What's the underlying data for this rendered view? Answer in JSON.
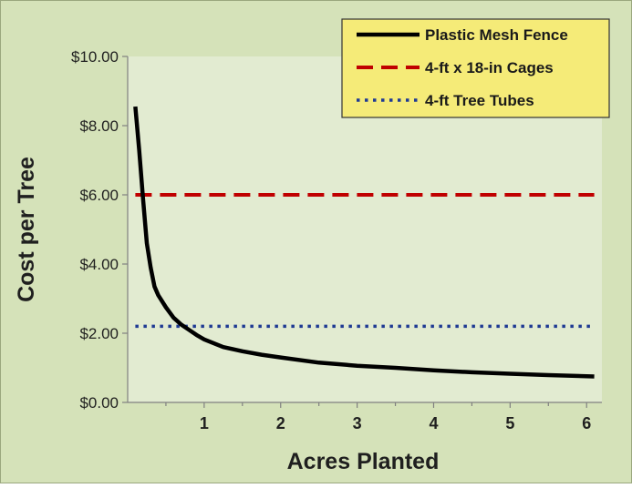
{
  "chart_data": {
    "type": "line",
    "title": "",
    "xlabel": "Acres Planted",
    "ylabel": "Cost per Tree",
    "xlim": [
      0,
      6.2
    ],
    "ylim": [
      0,
      10
    ],
    "x_ticks": [
      1,
      2,
      3,
      4,
      5,
      6
    ],
    "x_tick_labels": [
      "1",
      "2",
      "3",
      "4",
      "5",
      "6"
    ],
    "y_ticks": [
      0,
      2,
      4,
      6,
      8,
      10
    ],
    "y_tick_labels": [
      "$0.00",
      "$2.00",
      "$4.00",
      "$6.00",
      "$8.00",
      "$10.00"
    ],
    "grid": false,
    "legend_position": "top-right",
    "series": [
      {
        "name": "Plastic Mesh Fence",
        "style": "solid",
        "color": "#000000",
        "x": [
          0.1,
          0.15,
          0.2,
          0.25,
          0.3,
          0.35,
          0.4,
          0.5,
          0.6,
          0.7,
          0.8,
          0.9,
          1.0,
          1.25,
          1.5,
          1.75,
          2.0,
          2.5,
          3.0,
          3.5,
          4.0,
          4.5,
          5.0,
          5.5,
          6.1
        ],
        "y": [
          8.55,
          7.3,
          5.9,
          4.6,
          3.9,
          3.35,
          3.1,
          2.75,
          2.45,
          2.25,
          2.1,
          1.95,
          1.82,
          1.6,
          1.48,
          1.38,
          1.3,
          1.15,
          1.06,
          1.0,
          0.93,
          0.87,
          0.83,
          0.79,
          0.75
        ]
      },
      {
        "name": "4-ft x 18-in Cages",
        "style": "dashed",
        "color": "#c00000",
        "x": [
          0.1,
          6.1
        ],
        "y": [
          6.0,
          6.0
        ]
      },
      {
        "name": "4-ft Tree Tubes",
        "style": "dotted",
        "color": "#1f3a93",
        "x": [
          0.1,
          6.1
        ],
        "y": [
          2.2,
          2.2
        ]
      }
    ],
    "colors": {
      "outer_background": "#d5e2b9",
      "plot_background": "#e2ebd1",
      "legend_background": "#f5eb78",
      "axis_text": "#1f1f1f"
    }
  }
}
